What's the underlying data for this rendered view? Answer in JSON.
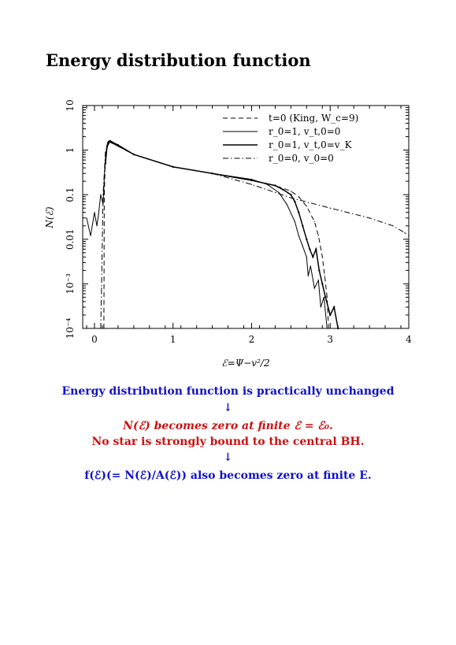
{
  "page": {
    "title": "Energy distribution function"
  },
  "text": {
    "line1": "Energy distribution function is practically unchanged",
    "arrow1": "↓",
    "line2": "N(ℰ) becomes zero at finite ℰ = ℰ₀.",
    "line3": "No star is strongly bound to the central BH.",
    "arrow2": "↓",
    "line4": "f(ℰ)(= N(ℰ)/A(ℰ)) also becomes zero at finite E."
  },
  "colors": {
    "blue": "#1010cc",
    "red": "#cc1010"
  },
  "chart_data": {
    "type": "line",
    "xlabel": "ℰ=Ψ−v²/2",
    "ylabel": "N(ℰ)",
    "xlim": [
      -0.15,
      4
    ],
    "ylim": [
      0.0001,
      10
    ],
    "yscale": "log",
    "grid": false,
    "legend_position": "top-right",
    "x_ticks": [
      "0",
      "1",
      "2",
      "3",
      "4"
    ],
    "y_ticks": [
      "10⁻⁴",
      "10⁻³",
      "0.01",
      "0.1",
      "1",
      "10"
    ],
    "series": [
      {
        "name": "t=0 (King, W_c=9)",
        "style": "dashed",
        "points": [
          [
            0.12,
            0.0001
          ],
          [
            0.125,
            0.1
          ],
          [
            0.14,
            0.8
          ],
          [
            0.17,
            1.5
          ],
          [
            0.22,
            1.45
          ],
          [
            0.5,
            0.8
          ],
          [
            1.0,
            0.42
          ],
          [
            1.5,
            0.3
          ],
          [
            2.0,
            0.21
          ],
          [
            2.3,
            0.16
          ],
          [
            2.5,
            0.12
          ],
          [
            2.6,
            0.09
          ],
          [
            2.7,
            0.055
          ],
          [
            2.8,
            0.025
          ],
          [
            2.85,
            0.012
          ],
          [
            2.9,
            0.004
          ],
          [
            2.93,
            0.0015
          ],
          [
            2.96,
            0.0005
          ],
          [
            2.98,
            0.0001
          ]
        ]
      },
      {
        "name": "r_0=1, v_t,0=0",
        "style": "solid",
        "points": [
          [
            -0.1,
            0.03
          ],
          [
            -0.05,
            0.012
          ],
          [
            0.0,
            0.04
          ],
          [
            0.03,
            0.02
          ],
          [
            0.05,
            0.035
          ],
          [
            0.08,
            0.1
          ],
          [
            0.11,
            0.06
          ],
          [
            0.13,
            0.35
          ],
          [
            0.15,
            0.9
          ],
          [
            0.18,
            1.6
          ],
          [
            0.23,
            1.45
          ],
          [
            0.5,
            0.8
          ],
          [
            1.0,
            0.42
          ],
          [
            1.5,
            0.3
          ],
          [
            2.0,
            0.22
          ],
          [
            2.2,
            0.17
          ],
          [
            2.35,
            0.11
          ],
          [
            2.45,
            0.06
          ],
          [
            2.55,
            0.025
          ],
          [
            2.6,
            0.012
          ],
          [
            2.65,
            0.007
          ],
          [
            2.7,
            0.004
          ],
          [
            2.72,
            0.0015
          ],
          [
            2.75,
            0.0025
          ],
          [
            2.8,
            0.0008
          ],
          [
            2.85,
            0.0012
          ],
          [
            2.88,
            0.0003
          ],
          [
            2.92,
            0.0005
          ],
          [
            2.96,
            0.0001
          ]
        ]
      },
      {
        "name": "r_0=1, v_t,0=v_K",
        "style": "solid-marked",
        "points": [
          [
            0.14,
            0.5
          ],
          [
            0.16,
            1.2
          ],
          [
            0.2,
            1.6
          ],
          [
            0.3,
            1.3
          ],
          [
            0.5,
            0.8
          ],
          [
            1.0,
            0.42
          ],
          [
            1.5,
            0.3
          ],
          [
            2.0,
            0.21
          ],
          [
            2.3,
            0.16
          ],
          [
            2.4,
            0.13
          ],
          [
            2.5,
            0.1
          ],
          [
            2.55,
            0.07
          ],
          [
            2.6,
            0.04
          ],
          [
            2.65,
            0.02
          ],
          [
            2.7,
            0.01
          ],
          [
            2.74,
            0.006
          ],
          [
            2.78,
            0.004
          ],
          [
            2.82,
            0.006
          ],
          [
            2.86,
            0.002
          ],
          [
            2.9,
            0.001
          ],
          [
            2.94,
            0.0005
          ],
          [
            3.0,
            0.0002
          ],
          [
            3.05,
            0.0003
          ],
          [
            3.1,
            0.0001
          ]
        ]
      },
      {
        "name": "r_0=0, v_0=0",
        "style": "dash-dot",
        "points": [
          [
            0.08,
            0.0001
          ],
          [
            0.09,
            0.0008
          ],
          [
            0.11,
            0.1
          ],
          [
            0.14,
            0.9
          ],
          [
            0.17,
            1.5
          ],
          [
            0.22,
            1.45
          ],
          [
            0.5,
            0.8
          ],
          [
            1.0,
            0.42
          ],
          [
            1.5,
            0.3
          ],
          [
            2.0,
            0.17
          ],
          [
            2.5,
            0.085
          ],
          [
            3.0,
            0.05
          ],
          [
            3.5,
            0.03
          ],
          [
            3.8,
            0.02
          ],
          [
            3.95,
            0.014
          ],
          [
            4.0,
            0.012
          ]
        ]
      }
    ]
  }
}
